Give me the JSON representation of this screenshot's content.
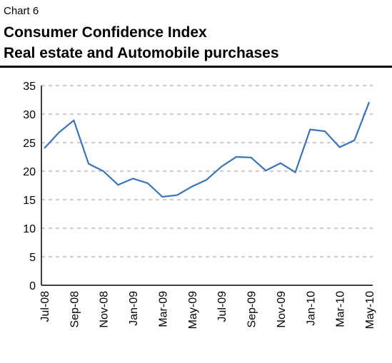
{
  "chart_data": {
    "type": "line",
    "label": "Chart 6",
    "title": "Consumer Confidence Index",
    "subtitle": "Real estate and Automobile purchases",
    "categories": [
      "Jul-08",
      null,
      "Sep-08",
      null,
      "Nov-08",
      null,
      "Jan-09",
      null,
      "Mar-09",
      null,
      "May-09",
      null,
      "Jul-09",
      null,
      "Sep-09",
      null,
      "Nov-09",
      null,
      "Jan-10",
      null,
      "Mar-10",
      null,
      "May-10"
    ],
    "series": [
      {
        "color": "#3b73b9",
        "values": [
          24,
          26.8,
          28.9,
          21.3,
          20,
          17.6,
          18.7,
          17.9,
          15.5,
          15.8,
          17.3,
          18.5,
          20.8,
          22.5,
          22.4,
          20.1,
          21.4,
          19.8,
          27.3,
          27.0,
          24.2,
          25.4,
          32.1
        ]
      }
    ],
    "ylim": [
      0,
      35
    ],
    "yticks": [
      0,
      5,
      10,
      15,
      20,
      25,
      30,
      35
    ],
    "grid": true
  }
}
